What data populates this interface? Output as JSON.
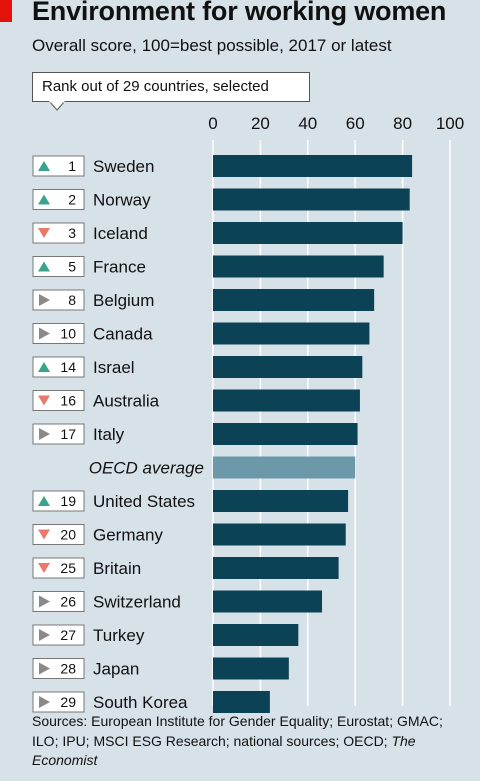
{
  "title": "Environment for working women",
  "subtitle": "Overall score, 100=best possible, 2017 or latest",
  "rank_legend": "Rank out of 29 countries, selected",
  "sources_prefix": "Sources: European Institute for Gender Equality; Eurostat; GMAC; ILO; IPU; MSCI ESG Research; national sources; OECD; ",
  "sources_italic": "The Economist",
  "colors": {
    "bar": "#0c4256",
    "average_bar": "#6c99aa",
    "up": "#3aa38a",
    "down": "#e87a6b",
    "same": "#8a8a8a",
    "gridline": "#ffffff",
    "background": "#d6e1e8"
  },
  "chart_data": {
    "type": "bar",
    "orientation": "horizontal",
    "xlim": [
      0,
      100
    ],
    "xticks": [
      0,
      20,
      40,
      60,
      80,
      100
    ],
    "grid": true,
    "rows": [
      {
        "rank": "1",
        "change": "up",
        "label": "Sweden",
        "value": 84
      },
      {
        "rank": "2",
        "change": "up",
        "label": "Norway",
        "value": 83
      },
      {
        "rank": "3",
        "change": "down",
        "label": "Iceland",
        "value": 80
      },
      {
        "rank": "5",
        "change": "up",
        "label": "France",
        "value": 72
      },
      {
        "rank": "8",
        "change": "same",
        "label": "Belgium",
        "value": 68
      },
      {
        "rank": "10",
        "change": "same",
        "label": "Canada",
        "value": 66
      },
      {
        "rank": "14",
        "change": "up",
        "label": "Israel",
        "value": 63
      },
      {
        "rank": "16",
        "change": "down",
        "label": "Australia",
        "value": 62
      },
      {
        "rank": "17",
        "change": "same",
        "label": "Italy",
        "value": 61
      },
      {
        "rank": "",
        "change": "none",
        "label": "OECD average",
        "value": 60,
        "average": true
      },
      {
        "rank": "19",
        "change": "up",
        "label": "United States",
        "value": 57
      },
      {
        "rank": "20",
        "change": "down",
        "label": "Germany",
        "value": 56
      },
      {
        "rank": "25",
        "change": "down",
        "label": "Britain",
        "value": 53
      },
      {
        "rank": "26",
        "change": "same",
        "label": "Switzerland",
        "value": 46
      },
      {
        "rank": "27",
        "change": "same",
        "label": "Turkey",
        "value": 36
      },
      {
        "rank": "28",
        "change": "same",
        "label": "Japan",
        "value": 32
      },
      {
        "rank": "29",
        "change": "same",
        "label": "South Korea",
        "value": 24
      }
    ]
  }
}
